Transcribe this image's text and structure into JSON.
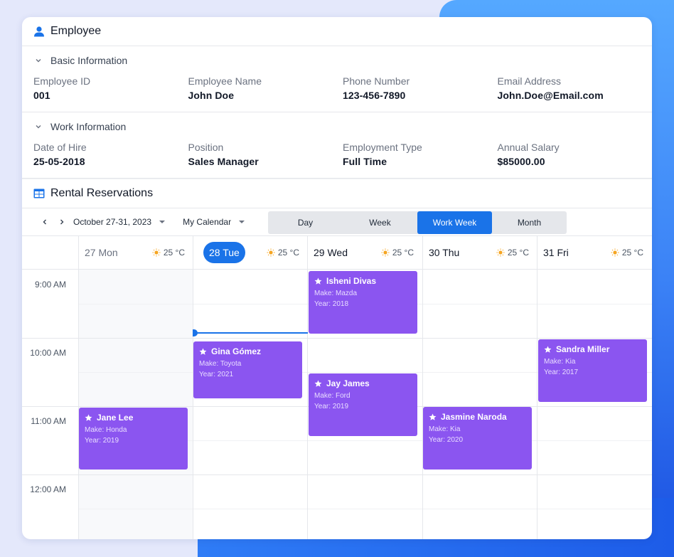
{
  "employee": {
    "title": "Employee",
    "basic_section": "Basic Information",
    "basic_fields": [
      {
        "label": "Employee ID",
        "value": "001"
      },
      {
        "label": "Employee Name",
        "value": "John Doe"
      },
      {
        "label": "Phone Number",
        "value": "123-456-7890"
      },
      {
        "label": "Email Address",
        "value": "John.Doe@Email.com"
      }
    ],
    "work_section": "Work Information",
    "work_fields": [
      {
        "label": "Date of Hire",
        "value": "25-05-2018"
      },
      {
        "label": "Position",
        "value": "Sales Manager"
      },
      {
        "label": "Employment Type",
        "value": "Full Time"
      },
      {
        "label": "Annual Salary",
        "value": "$85000.00"
      }
    ]
  },
  "rental": {
    "title": "Rental Reservations",
    "date_range": "October 27-31, 2023",
    "calendar": "My Calendar",
    "views": [
      "Day",
      "Week",
      "Work Week",
      "Month"
    ],
    "active_view": "Work Week",
    "days": [
      {
        "label": "27 Mon",
        "temp": "25 °C"
      },
      {
        "label": "28 Tue",
        "temp": "25 °C"
      },
      {
        "label": "29 Wed",
        "temp": "25 °C"
      },
      {
        "label": "30 Thu",
        "temp": "25 °C"
      },
      {
        "label": "31 Fri",
        "temp": "25 °C"
      }
    ],
    "today_index": 1,
    "times": [
      "9:00 AM",
      "10:00 AM",
      "11:00 AM",
      "12:00 AM"
    ],
    "events": [
      {
        "name": "Isheni Divas",
        "make": "Make: Mazda",
        "year": "Year: 2018"
      },
      {
        "name": "Gina Gómez",
        "make": "Make: Toyota",
        "year": "Year: 2021"
      },
      {
        "name": "Jay James",
        "make": "Make: Ford",
        "year": "Year: 2019"
      },
      {
        "name": "Sandra Miller",
        "make": "Make: Kia",
        "year": "Year: 2017"
      },
      {
        "name": "Jane Lee",
        "make": "Make: Honda",
        "year": "Year: 2019"
      },
      {
        "name": "Jasmine Naroda",
        "make": "Make: Kia",
        "year": "Year: 2020"
      }
    ]
  },
  "colors": {
    "accent": "#1a73e8",
    "event": "#8b55f0"
  }
}
